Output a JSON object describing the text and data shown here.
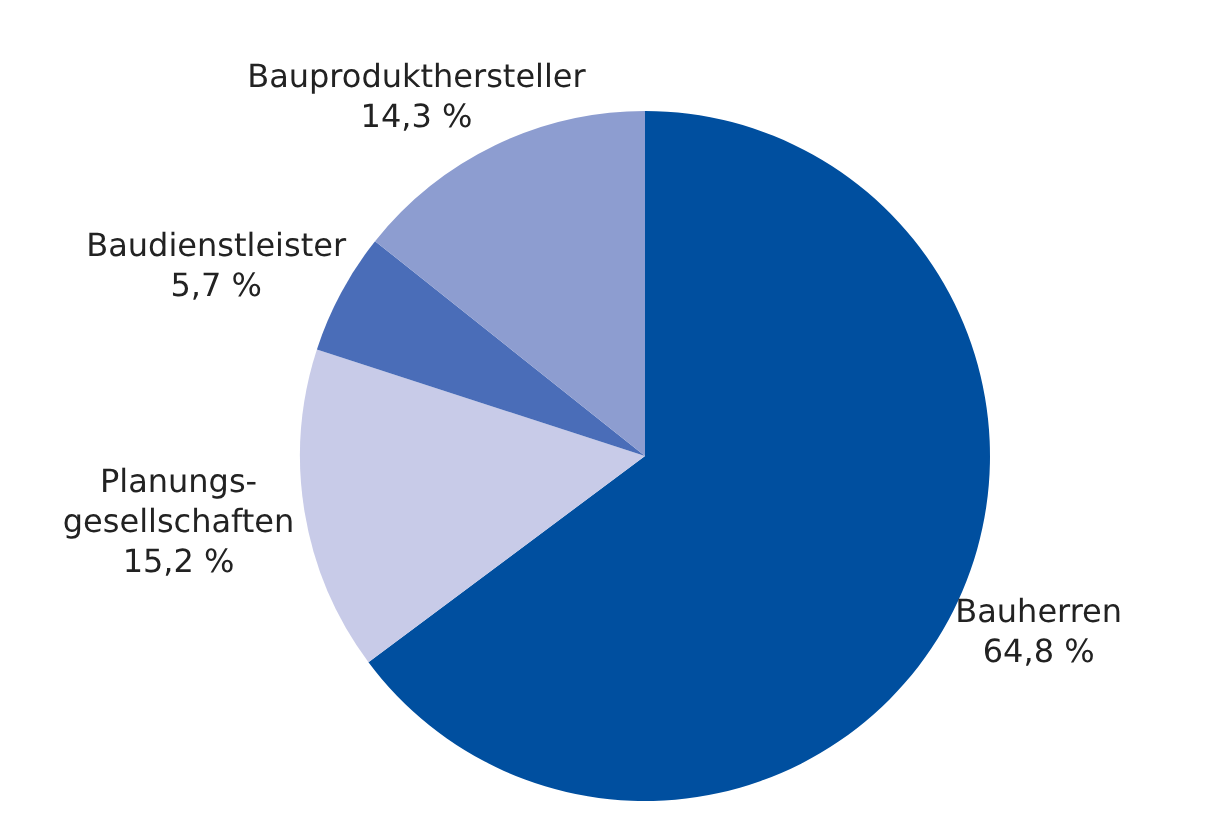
{
  "chart_data": {
    "type": "pie",
    "categories": [
      "Bauherren",
      "Planungs-\ngesellschaften",
      "Baudienstleister",
      "Bauprodukthersteller"
    ],
    "values": [
      64.8,
      15.2,
      5.7,
      14.3
    ],
    "colors": [
      "#004f9f",
      "#c8cbe8",
      "#4a6db8",
      "#8d9dd0"
    ],
    "value_labels": [
      "64,8 %",
      "15,2 %",
      "5,7 %",
      "14,3 %"
    ],
    "legend": false
  }
}
